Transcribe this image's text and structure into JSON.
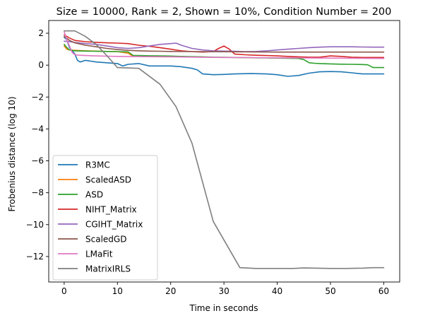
{
  "chart_data": {
    "type": "line",
    "title": "Size = 10000, Rank = 2, Shown = 10%, Condition Number = 200",
    "xlabel": "Time in seconds",
    "ylabel": "Frobenius distance (log 10)",
    "xlim": [
      -2.9,
      63
    ],
    "ylim": [
      -13.6,
      2.8
    ],
    "xticks": [
      0,
      10,
      20,
      30,
      40,
      50,
      60
    ],
    "yticks": [
      2,
      0,
      -2,
      -4,
      -6,
      -8,
      -10,
      -12
    ],
    "grid": false,
    "legend_position": "lower-left",
    "series": [
      {
        "name": "R3MC",
        "color": "#1f77b4",
        "x": [
          0,
          0.5,
          1,
          2,
          2.5,
          3,
          4,
          5,
          6,
          8,
          10,
          11,
          12,
          14,
          16,
          18,
          20,
          22,
          24,
          25,
          26,
          28,
          30,
          32,
          35,
          38,
          40,
          42,
          44,
          46,
          48,
          50,
          52,
          54,
          56,
          58,
          60
        ],
        "y": [
          1.75,
          1.6,
          1.1,
          0.7,
          0.3,
          0.2,
          0.3,
          0.25,
          0.2,
          0.15,
          0.1,
          -0.05,
          0.05,
          0.1,
          -0.05,
          -0.05,
          -0.05,
          -0.1,
          -0.2,
          -0.3,
          -0.55,
          -0.6,
          -0.58,
          -0.55,
          -0.53,
          -0.55,
          -0.6,
          -0.7,
          -0.65,
          -0.5,
          -0.42,
          -0.4,
          -0.42,
          -0.48,
          -0.55,
          -0.55,
          -0.55
        ]
      },
      {
        "name": "ScaledASD",
        "color": "#ff7f0e",
        "x": [
          0,
          0.5,
          1,
          2,
          4,
          6,
          8,
          10,
          12,
          13
        ],
        "y": [
          1.2,
          1.0,
          0.95,
          0.93,
          0.9,
          0.88,
          0.86,
          0.85,
          0.75,
          0.55
        ]
      },
      {
        "name": "ASD",
        "color": "#2ca02c",
        "x": [
          0,
          0.5,
          1,
          2,
          4,
          6,
          8,
          10,
          12,
          13,
          14,
          16,
          18,
          20,
          22,
          24,
          26,
          28,
          30,
          32,
          34,
          36,
          38,
          40,
          42,
          44,
          45,
          46,
          47,
          48,
          50,
          52,
          54,
          56,
          57,
          58,
          60
        ],
        "y": [
          1.3,
          1.1,
          0.95,
          0.9,
          0.88,
          0.87,
          0.86,
          0.85,
          0.83,
          0.6,
          0.6,
          0.59,
          0.58,
          0.57,
          0.55,
          0.53,
          0.52,
          0.5,
          0.49,
          0.48,
          0.47,
          0.46,
          0.45,
          0.44,
          0.43,
          0.42,
          0.35,
          0.15,
          0.12,
          0.1,
          0.08,
          0.06,
          0.05,
          0.04,
          0.02,
          -0.15,
          -0.15
        ]
      },
      {
        "name": "NIHT_Matrix",
        "color": "#d62728",
        "x": [
          0,
          1,
          2,
          4,
          6,
          8,
          10,
          12,
          14,
          16,
          18,
          20,
          22,
          24,
          26,
          28,
          29,
          30,
          31,
          32,
          34,
          36,
          38,
          40,
          42,
          44,
          46,
          48,
          50,
          52,
          54,
          56,
          58,
          60
        ],
        "y": [
          1.9,
          1.7,
          1.55,
          1.47,
          1.43,
          1.4,
          1.38,
          1.35,
          1.25,
          1.18,
          1.1,
          1.0,
          0.9,
          0.85,
          0.82,
          0.85,
          1.05,
          1.2,
          1.0,
          0.7,
          0.65,
          0.62,
          0.6,
          0.58,
          0.55,
          0.52,
          0.5,
          0.5,
          0.58,
          0.55,
          0.5,
          0.48,
          0.48,
          0.48
        ]
      },
      {
        "name": "CGIHT_Matrix",
        "color": "#9467bd",
        "x": [
          0,
          1,
          2,
          4,
          6,
          8,
          10,
          12,
          14,
          16,
          18,
          20,
          21,
          22,
          24,
          26,
          28,
          30,
          32,
          34,
          36,
          38,
          40,
          42,
          44,
          46,
          48,
          50,
          52,
          54,
          56,
          58,
          60
        ],
        "y": [
          1.5,
          1.48,
          1.42,
          1.35,
          1.3,
          1.2,
          1.1,
          1.05,
          1.1,
          1.2,
          1.3,
          1.35,
          1.38,
          1.25,
          1.05,
          0.95,
          0.9,
          0.88,
          0.87,
          0.85,
          0.86,
          0.9,
          0.95,
          1.0,
          1.05,
          1.1,
          1.13,
          1.15,
          1.15,
          1.15,
          1.14,
          1.13,
          1.13
        ]
      },
      {
        "name": "ScaledGD",
        "color": "#8c564b",
        "x": [
          0,
          1,
          2,
          4,
          6,
          8,
          10,
          12,
          14,
          16,
          18,
          20,
          25,
          30,
          35,
          40,
          45,
          50,
          55,
          60
        ],
        "y": [
          1.8,
          1.55,
          1.4,
          1.25,
          1.15,
          1.05,
          0.98,
          0.93,
          0.9,
          0.88,
          0.87,
          0.86,
          0.85,
          0.84,
          0.83,
          0.82,
          0.82,
          0.82,
          0.82,
          0.82
        ]
      },
      {
        "name": "LMaFit",
        "color": "#e377c2",
        "x": [
          0,
          0.5,
          1,
          1.5,
          2,
          3,
          4,
          6,
          8,
          10,
          15,
          20,
          25,
          30,
          35,
          40,
          45,
          50,
          55,
          60
        ],
        "y": [
          2.1,
          1.6,
          1.2,
          0.8,
          0.65,
          0.62,
          0.6,
          0.58,
          0.56,
          0.55,
          0.53,
          0.52,
          0.5,
          0.48,
          0.47,
          0.46,
          0.45,
          0.44,
          0.43,
          0.42
        ]
      },
      {
        "name": "MatrixIRLS",
        "color": "#7f7f7f",
        "x": [
          0,
          2,
          4,
          6,
          8,
          10,
          14,
          18,
          21,
          24,
          28,
          33,
          36,
          40,
          43,
          45,
          50,
          53,
          56,
          58,
          60
        ],
        "y": [
          2.15,
          2.15,
          1.8,
          1.3,
          0.6,
          -0.15,
          -0.2,
          -1.2,
          -2.6,
          -4.9,
          -9.8,
          -12.7,
          -12.75,
          -12.75,
          -12.75,
          -12.72,
          -12.75,
          -12.75,
          -12.73,
          -12.7,
          -12.7
        ]
      }
    ]
  }
}
